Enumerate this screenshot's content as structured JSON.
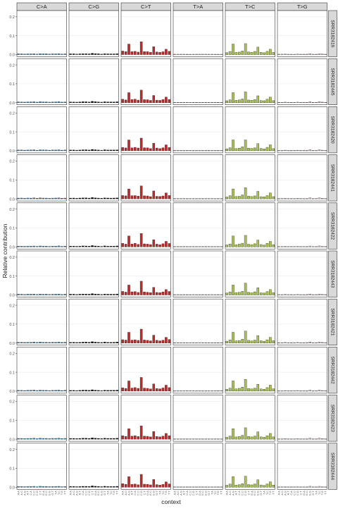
{
  "chart_data": {
    "type": "bar",
    "title": "",
    "xlabel": "context",
    "ylabel": "Relative contribution",
    "ylim": [
      0,
      0.22
    ],
    "yticks": [
      0,
      0.1,
      0.2
    ],
    "ytick_labels": [
      "0.0",
      "0.1",
      "0.2"
    ],
    "grid": true,
    "legend": "none",
    "substitutions": [
      {
        "name": "C>A",
        "color": "#2e86c1"
      },
      {
        "name": "C>G",
        "color": "#000000"
      },
      {
        "name": "C>T",
        "color": "#c0282a"
      },
      {
        "name": "T>A",
        "color": "#c8c8c8"
      },
      {
        "name": "T>C",
        "color": "#a9c24e"
      },
      {
        "name": "T>G",
        "color": "#e8c4c4"
      }
    ],
    "contexts": [
      "A.A",
      "A.C",
      "A.G",
      "A.T",
      "C.A",
      "C.C",
      "C.G",
      "C.T",
      "G.A",
      "G.C",
      "G.G",
      "G.T",
      "T.A",
      "T.C",
      "T.G",
      "T.T"
    ],
    "samples": [
      "SRR3182419",
      "SRR3182445",
      "SRR3182420",
      "SRR3182441",
      "SRR3182422",
      "SRR3182443",
      "SRR3182421",
      "SRR3182442",
      "SRR3182423",
      "SRR3182444"
    ],
    "base_profile": [
      [
        0.004,
        0.004,
        0.003,
        0.004,
        0.004,
        0.005,
        0.003,
        0.005,
        0.004,
        0.004,
        0.003,
        0.004,
        0.004,
        0.005,
        0.003,
        0.004
      ],
      [
        0.004,
        0.004,
        0.003,
        0.004,
        0.005,
        0.005,
        0.004,
        0.007,
        0.005,
        0.004,
        0.003,
        0.005,
        0.004,
        0.004,
        0.004,
        0.005
      ],
      [
        0.018,
        0.015,
        0.055,
        0.016,
        0.018,
        0.014,
        0.07,
        0.016,
        0.015,
        0.012,
        0.04,
        0.014,
        0.012,
        0.016,
        0.03,
        0.018
      ],
      [
        0.002,
        0.002,
        0.002,
        0.002,
        0.002,
        0.002,
        0.002,
        0.002,
        0.002,
        0.002,
        0.002,
        0.002,
        0.002,
        0.002,
        0.002,
        0.002
      ],
      [
        0.01,
        0.016,
        0.055,
        0.012,
        0.014,
        0.02,
        0.06,
        0.014,
        0.012,
        0.016,
        0.038,
        0.012,
        0.01,
        0.018,
        0.03,
        0.012
      ],
      [
        0.002,
        0.002,
        0.003,
        0.002,
        0.002,
        0.002,
        0.003,
        0.002,
        0.002,
        0.002,
        0.005,
        0.002,
        0.002,
        0.005,
        0.003,
        0.002
      ]
    ]
  }
}
